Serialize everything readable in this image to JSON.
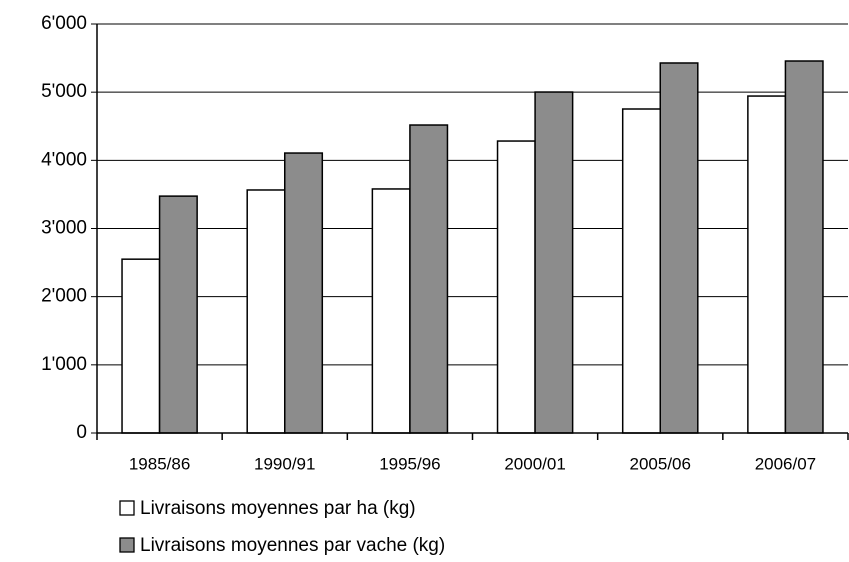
{
  "chart_data": {
    "type": "bar",
    "categories": [
      "1985/86",
      "1990/91",
      "1995/96",
      "2000/01",
      "2005/06",
      "2006/07"
    ],
    "series": [
      {
        "name": "Livraisons moyennes par ha (kg)",
        "color": "#ffffff",
        "values": [
          2550,
          3565,
          3580,
          4283,
          4753,
          4943
        ]
      },
      {
        "name": "Livraisons moyennes par vache (kg)",
        "color": "#8c8c8c",
        "values": [
          3475,
          4107,
          4518,
          5002,
          5428,
          5457
        ]
      }
    ],
    "ylim": [
      0,
      6000
    ],
    "yticks": [
      0,
      {
        "value": 1000,
        "label": "1'000"
      },
      {
        "value": 2000,
        "label": "2'000"
      },
      {
        "value": 3000,
        "label": "3'000"
      },
      {
        "value": 4000,
        "label": "4'000"
      },
      {
        "value": 5000,
        "label": "5'000"
      },
      {
        "value": 6000,
        "label": "6'000"
      }
    ],
    "grid": true,
    "legend": "bottom-left"
  }
}
